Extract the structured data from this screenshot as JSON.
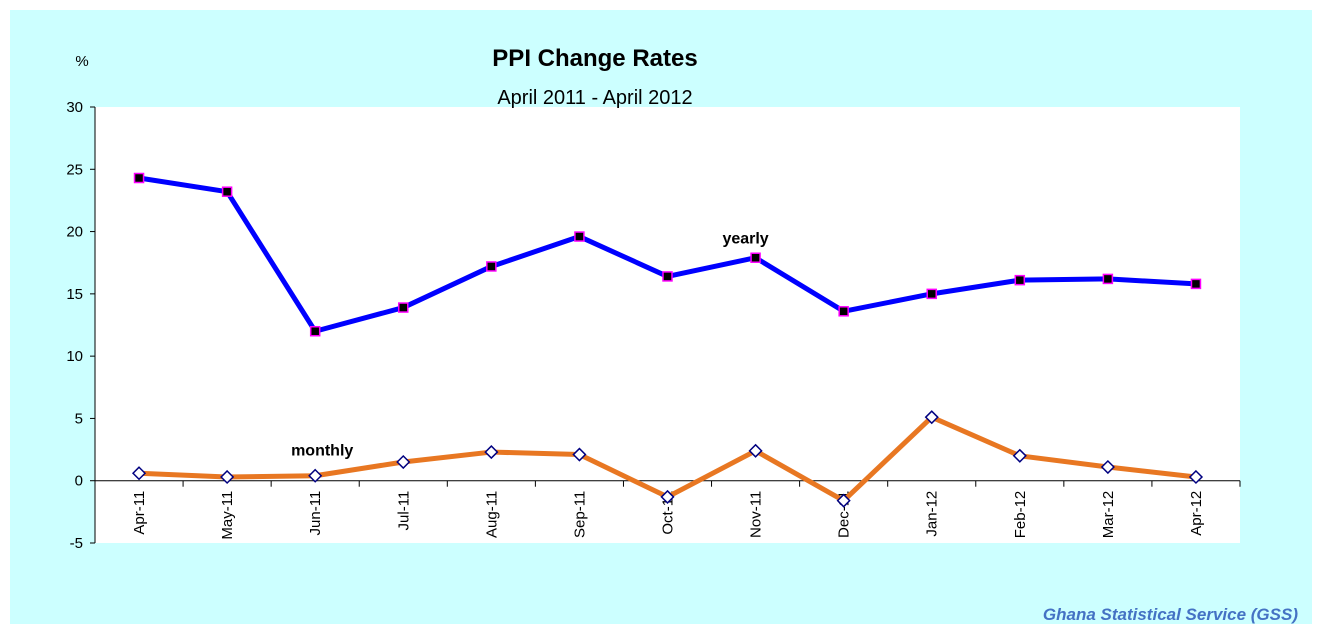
{
  "chart_data": {
    "type": "line",
    "title": "PPI Change Rates",
    "subtitle": "April 2011 - April 2012",
    "y_label": "%",
    "source": "Ghana Statistical Service (GSS)",
    "categories": [
      "Apr-11",
      "May-11",
      "Jun-11",
      "Jul-11",
      "Aug-11",
      "Sep-11",
      "Oct-11",
      "Nov-11",
      "Dec-11",
      "Jan-12",
      "Feb-12",
      "Mar-12",
      "Apr-12"
    ],
    "series": [
      {
        "name": "yearly",
        "color": "#0000ff",
        "marker": "square",
        "marker_fill": "#000000",
        "marker_stroke": "#ff00ff",
        "values": [
          24.3,
          23.2,
          12.0,
          13.9,
          17.2,
          19.6,
          16.4,
          17.9,
          13.6,
          15.0,
          16.1,
          16.2,
          15.8
        ]
      },
      {
        "name": "monthly",
        "color": "#e87722",
        "marker": "diamond",
        "marker_fill": "#ffffff",
        "marker_stroke": "#000080",
        "values": [
          0.6,
          0.3,
          0.4,
          1.5,
          2.3,
          2.1,
          -1.3,
          2.4,
          -1.6,
          5.1,
          2.0,
          1.1,
          0.3
        ]
      }
    ],
    "ylim": [
      -5,
      30
    ],
    "yticks": [
      -5,
      0,
      5,
      10,
      15,
      20,
      25,
      30
    ],
    "background": "#ccffff",
    "plot_background": "#ffffff"
  }
}
